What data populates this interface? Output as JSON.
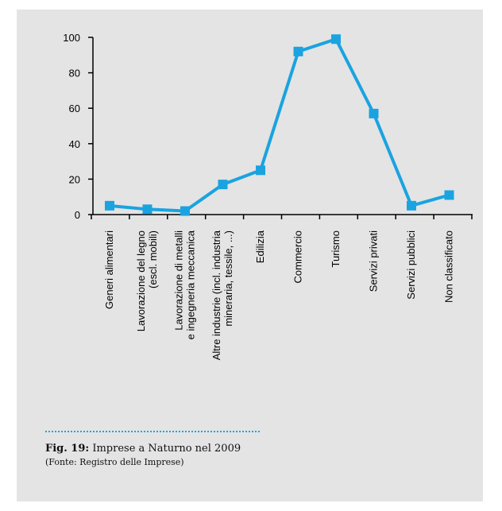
{
  "chart_data": {
    "type": "line",
    "categories": [
      [
        "Generi alimentari"
      ],
      [
        "Lavorazione del legno",
        "(escl. mobili)"
      ],
      [
        "Lavorazione di metalli",
        "e ingegneria meccanica"
      ],
      [
        "Altre industrie (incl. industria",
        "mineraria, tessile, ...)"
      ],
      [
        "Edilizia"
      ],
      [
        "Commercio"
      ],
      [
        "Turismo"
      ],
      [
        "Servizi privati"
      ],
      [
        "Servizi pubblici"
      ],
      [
        "Non classificato"
      ]
    ],
    "values": [
      5,
      3,
      2,
      17,
      25,
      92,
      99,
      57,
      5,
      11
    ],
    "ylim": [
      0,
      100
    ],
    "yticks": [
      0,
      20,
      40,
      60,
      80,
      100
    ],
    "series_color": "#1aa3e0",
    "grid": false
  },
  "caption": {
    "fig_label": "Fig. 19:",
    "title": " Imprese a Naturno nel 2009",
    "source": "(Fonte: Registro delle Imprese)"
  },
  "colors": {
    "background": "#e4e4e4",
    "accent": "#1aa3e0"
  }
}
